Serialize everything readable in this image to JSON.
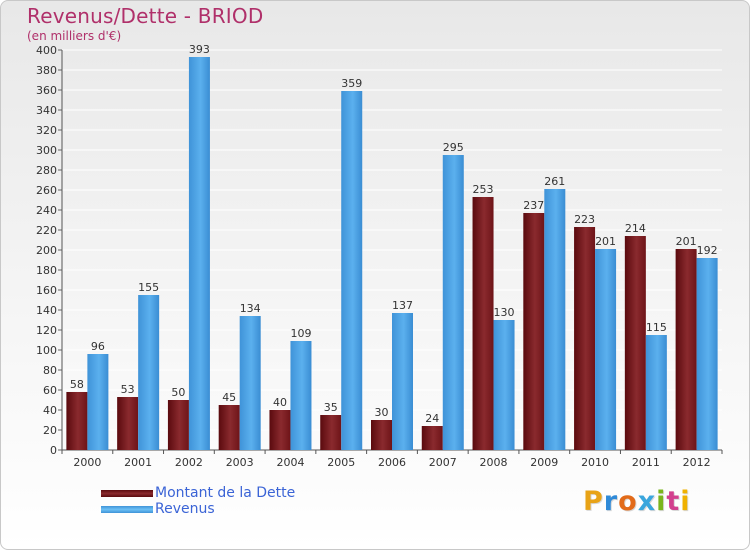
{
  "title": "Revenus/Dette - BRIOD",
  "subtitle": "(en milliers d'€)",
  "brand": "Proxiti",
  "colors": {
    "dette": "#6b0f13",
    "revenus": "#4ba3e6",
    "title": "#b0306a"
  },
  "chart_data": {
    "type": "bar",
    "categories": [
      "2000",
      "2001",
      "2002",
      "2003",
      "2004",
      "2005",
      "2006",
      "2007",
      "2008",
      "2009",
      "2010",
      "2011",
      "2012"
    ],
    "series": [
      {
        "name": "Montant de la Dette",
        "values": [
          58,
          53,
          50,
          45,
          40,
          35,
          30,
          24,
          253,
          237,
          223,
          214,
          201
        ]
      },
      {
        "name": "Revenus",
        "values": [
          96,
          155,
          393,
          134,
          109,
          359,
          137,
          295,
          130,
          261,
          201,
          115,
          192
        ]
      }
    ],
    "yticks": [
      0,
      20,
      40,
      60,
      80,
      100,
      120,
      140,
      160,
      180,
      200,
      220,
      240,
      260,
      280,
      300,
      320,
      340,
      360,
      380,
      400
    ],
    "ylim": [
      0,
      400
    ],
    "grid": true,
    "legend_position": "bottom-left"
  }
}
